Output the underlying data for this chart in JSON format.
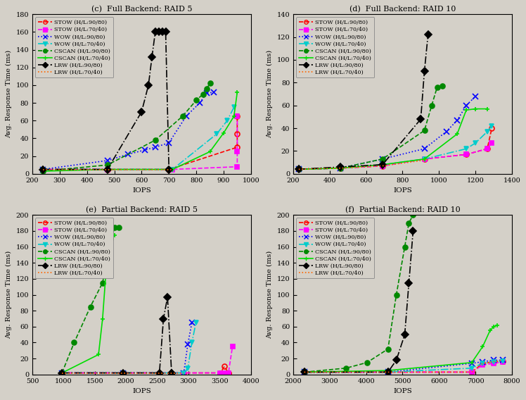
{
  "background_color": "#d4d0c8",
  "subplot_titles": [
    "(c)  Full Backend: RAID 5",
    "(d)  Full Backend: RAID 10",
    "(e)  Partial Backend: RAID 5",
    "(f)  Partial Backend: RAID 10"
  ],
  "ylabel": "Avg. Response Time (ms)",
  "xlabel": "IOPS",
  "series_labels": [
    "STOW (H/L:90/80)",
    "STOW (H/L:70/40)",
    "WOW (H/L:90/80)",
    "WOW (H/L:70/40)",
    "CSCAN (H/L:90/80)",
    "CSCAN (H/L:70/40)",
    "LRW (H/L:90/80)",
    "LRW (H/L:70/40)"
  ],
  "plots": {
    "c": {
      "ylim": [
        0,
        180
      ],
      "xlim": [
        200,
        1000
      ],
      "xticks": [
        200,
        300,
        400,
        500,
        600,
        700,
        800,
        900,
        1000
      ],
      "yticks": [
        0,
        20,
        40,
        60,
        80,
        100,
        120,
        140,
        160,
        180
      ],
      "series": {
        "STOW_9080": {
          "x": [
            238,
            475,
            700,
            950,
            950,
            950
          ],
          "y": [
            5,
            5,
            5,
            30,
            45,
            65
          ]
        },
        "STOW_7040": {
          "x": [
            238,
            475,
            713,
            950,
            950,
            950
          ],
          "y": [
            5,
            5,
            5,
            8,
            25,
            65
          ]
        },
        "WOW_9080": {
          "x": [
            238,
            475,
            550,
            613,
            650,
            700,
            763,
            813,
            838,
            863
          ],
          "y": [
            5,
            15,
            22,
            27,
            30,
            35,
            65,
            80,
            91,
            92
          ]
        },
        "WOW_7040": {
          "x": [
            238,
            475,
            713,
            875,
            913,
            938
          ],
          "y": [
            5,
            5,
            5,
            45,
            60,
            75
          ]
        },
        "CSCAN_9080": {
          "x": [
            238,
            475,
            650,
            750,
            800,
            825,
            838,
            850
          ],
          "y": [
            3,
            10,
            38,
            65,
            83,
            90,
            96,
            102
          ]
        },
        "CSCAN_7040": {
          "x": [
            238,
            475,
            713,
            850,
            900,
            938,
            950
          ],
          "y": [
            3,
            5,
            5,
            25,
            46,
            65,
            92
          ]
        },
        "LRW_9080": {
          "x": [
            238,
            475,
            600,
            625,
            638,
            650,
            663,
            675,
            688,
            700
          ],
          "y": [
            5,
            5,
            70,
            100,
            132,
            160,
            160,
            160,
            160,
            5
          ]
        },
        "LRW_7040": {
          "x": [
            238,
            475,
            713,
            713
          ],
          "y": [
            5,
            5,
            5,
            5
          ]
        }
      }
    },
    "d": {
      "ylim": [
        0,
        140
      ],
      "xlim": [
        200,
        1400
      ],
      "xticks": [
        200,
        400,
        600,
        800,
        1000,
        1200,
        1400
      ],
      "yticks": [
        0,
        20,
        40,
        60,
        80,
        100,
        120,
        140
      ],
      "series": {
        "STOW_9080": {
          "x": [
            230,
            460,
            690,
            920,
            1150,
            1265,
            1290
          ],
          "y": [
            4,
            5,
            7,
            13,
            17,
            22,
            40
          ]
        },
        "STOW_7040": {
          "x": [
            230,
            460,
            690,
            920,
            1150,
            1265,
            1290
          ],
          "y": [
            4,
            5,
            7,
            13,
            17,
            22,
            27
          ]
        },
        "WOW_9080": {
          "x": [
            230,
            460,
            690,
            920,
            1040,
            1100,
            1150,
            1200
          ],
          "y": [
            4,
            5,
            13,
            22,
            37,
            47,
            60,
            68
          ]
        },
        "WOW_7040": {
          "x": [
            230,
            460,
            690,
            920,
            1150,
            1200,
            1265,
            1290
          ],
          "y": [
            4,
            5,
            8,
            13,
            22,
            27,
            37,
            42
          ]
        },
        "CSCAN_9080": {
          "x": [
            230,
            460,
            690,
            920,
            960,
            990,
            1020
          ],
          "y": [
            4,
            5,
            13,
            38,
            60,
            76,
            77
          ]
        },
        "CSCAN_7040": {
          "x": [
            230,
            460,
            690,
            920,
            1100,
            1150,
            1200,
            1265
          ],
          "y": [
            4,
            5,
            8,
            13,
            35,
            56,
            57,
            57
          ]
        },
        "LRW_9080": {
          "x": [
            230,
            460,
            690,
            900,
            920,
            940
          ],
          "y": [
            4,
            6,
            8,
            48,
            90,
            122
          ]
        },
        "LRW_7040": {
          "x": [
            230,
            460,
            690,
            920,
            940
          ],
          "y": [
            4,
            5,
            7,
            12,
            13
          ]
        }
      }
    },
    "e": {
      "ylim": [
        0,
        200
      ],
      "xlim": [
        500,
        4000
      ],
      "xticks": [
        500,
        1000,
        1500,
        2000,
        2500,
        3000,
        3500,
        4000
      ],
      "yticks": [
        0,
        20,
        40,
        60,
        80,
        100,
        120,
        140,
        160,
        180,
        200
      ],
      "series": {
        "STOW_9080": {
          "x": [
            975,
            1950,
            2925,
            3510,
            3575,
            3640,
            3640
          ],
          "y": [
            2,
            2,
            2,
            2,
            10,
            2,
            2
          ]
        },
        "STOW_7040": {
          "x": [
            975,
            1950,
            2925,
            3510,
            3575,
            3640,
            3705
          ],
          "y": [
            2,
            2,
            2,
            2,
            2,
            2,
            35
          ]
        },
        "WOW_9080": {
          "x": [
            975,
            1950,
            2925,
            2990,
            3055
          ],
          "y": [
            2,
            2,
            2,
            38,
            65
          ]
        },
        "WOW_7040": {
          "x": [
            975,
            1950,
            2925,
            2990,
            3055,
            3120
          ],
          "y": [
            2,
            2,
            2,
            8,
            40,
            65
          ]
        },
        "CSCAN_9080": {
          "x": [
            975,
            1170,
            1430,
            1625,
            1690,
            1755,
            1820,
            1885
          ],
          "y": [
            2,
            40,
            85,
            115,
            143,
            170,
            184,
            184
          ]
        },
        "CSCAN_7040": {
          "x": [
            975,
            1560,
            1625,
            1690,
            1755,
            1820
          ],
          "y": [
            2,
            25,
            70,
            140,
            170,
            175
          ]
        },
        "LRW_9080": {
          "x": [
            975,
            1950,
            2535,
            2600,
            2665,
            2730,
            2730
          ],
          "y": [
            2,
            2,
            2,
            70,
            97,
            2,
            2
          ]
        },
        "LRW_7040": {
          "x": [
            975,
            1950,
            2925,
            2925
          ],
          "y": [
            2,
            2,
            2,
            2
          ]
        }
      }
    },
    "f": {
      "ylim": [
        0,
        200
      ],
      "xlim": [
        2000,
        8000
      ],
      "xticks": [
        2000,
        3000,
        4000,
        5000,
        6000,
        7000,
        8000
      ],
      "yticks": [
        0,
        20,
        40,
        60,
        80,
        100,
        120,
        140,
        160,
        180,
        200
      ],
      "series": {
        "STOW_9080": {
          "x": [
            2300,
            4600,
            6900,
            7200,
            7500,
            7750
          ],
          "y": [
            3,
            3,
            3,
            14,
            16,
            17
          ]
        },
        "STOW_7040": {
          "x": [
            2300,
            4600,
            6900,
            7200,
            7500,
            7750
          ],
          "y": [
            3,
            3,
            3,
            12,
            14,
            16
          ]
        },
        "WOW_9080": {
          "x": [
            2300,
            4600,
            6900,
            7200,
            7500,
            7750
          ],
          "y": [
            3,
            3,
            14,
            16,
            18,
            18
          ]
        },
        "WOW_7040": {
          "x": [
            2300,
            4600,
            6900,
            7200,
            7500,
            7750
          ],
          "y": [
            3,
            3,
            8,
            14,
            16,
            17
          ]
        },
        "CSCAN_9080": {
          "x": [
            2300,
            3450,
            4025,
            4600,
            4830,
            5060,
            5175,
            5290
          ],
          "y": [
            3,
            8,
            15,
            32,
            100,
            160,
            190,
            200
          ]
        },
        "CSCAN_7040": {
          "x": [
            2300,
            4600,
            6900,
            7200,
            7400,
            7500,
            7600
          ],
          "y": [
            3,
            5,
            15,
            35,
            55,
            60,
            62
          ]
        },
        "LRW_9080": {
          "x": [
            2300,
            4600,
            4830,
            5060,
            5175,
            5290
          ],
          "y": [
            3,
            3,
            18,
            50,
            115,
            180
          ]
        },
        "LRW_7040": {
          "x": [
            2300,
            4600,
            6900,
            7200,
            7500,
            7750
          ],
          "y": [
            3,
            3,
            3,
            14,
            16,
            18
          ]
        }
      }
    }
  }
}
